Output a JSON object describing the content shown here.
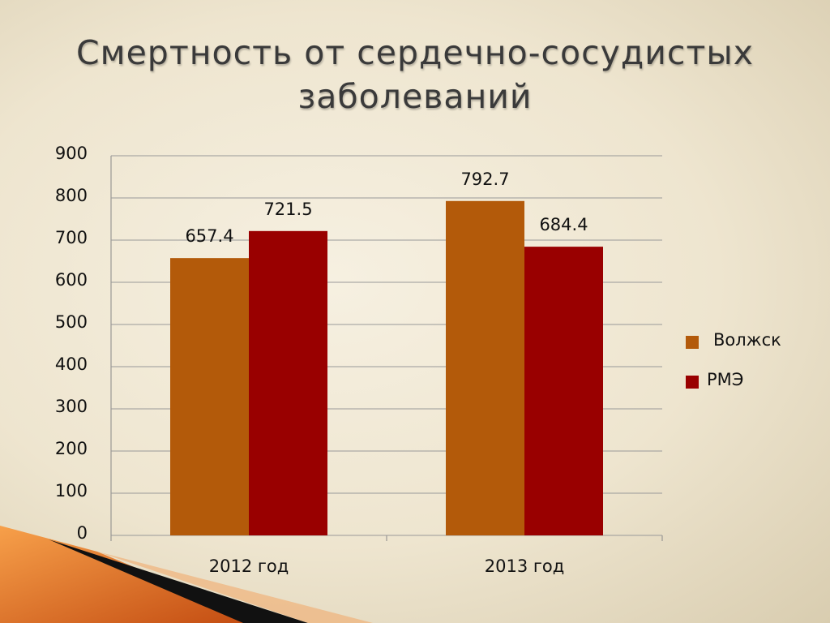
{
  "chart_data": {
    "type": "bar",
    "title": "Смертность от сердечно-сосудистых заболеваний",
    "categories": [
      "2012 год",
      "2013 год"
    ],
    "series": [
      {
        "name": "Волжск",
        "color": "#b35a0a",
        "values": [
          657.4,
          792.7
        ]
      },
      {
        "name": "РМЭ",
        "color": "#990000",
        "values": [
          721.5,
          684.4
        ]
      }
    ],
    "ylim": [
      0,
      900
    ],
    "yticks": [
      0,
      100,
      200,
      300,
      400,
      500,
      600,
      700,
      800,
      900
    ],
    "grid": true,
    "legend": "right",
    "data_labels": true
  }
}
